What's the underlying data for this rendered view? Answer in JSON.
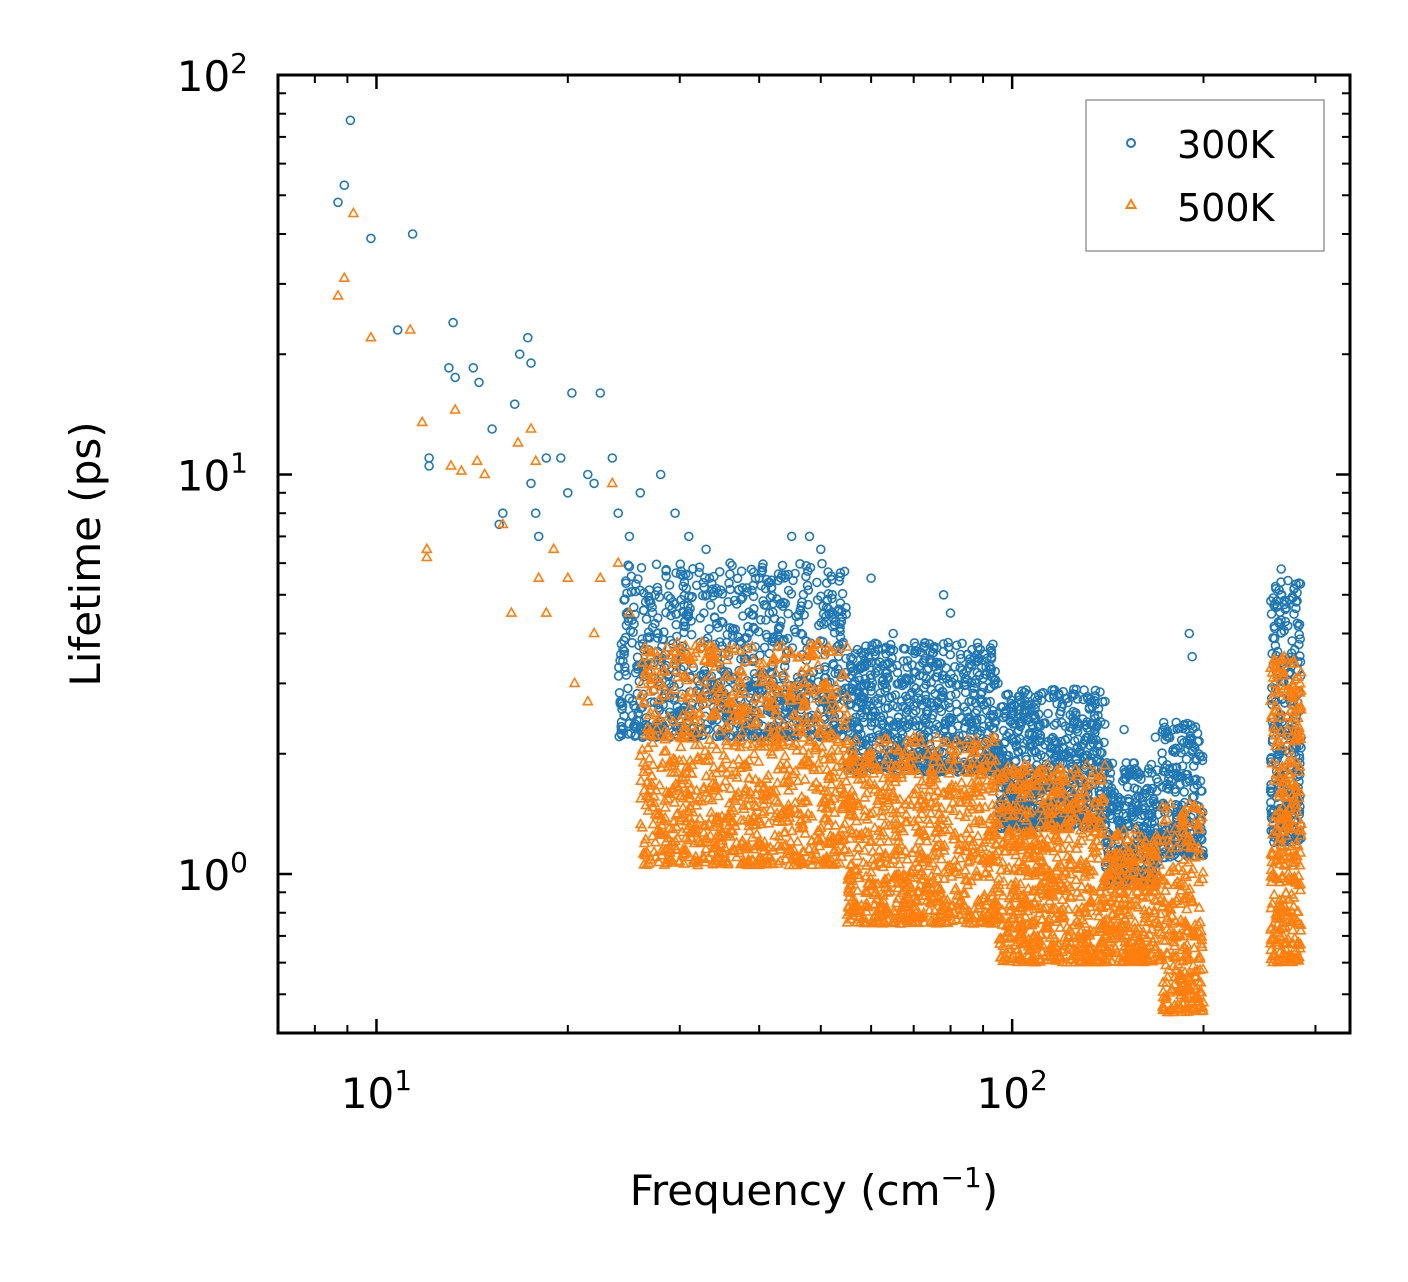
{
  "chart_data": {
    "type": "scatter",
    "title": "",
    "xlabel": "Frequency (cm",
    "xlabel_superscript": "−1",
    "xlabel_suffix": ")",
    "ylabel": "Lifetime (ps)",
    "xscale": "log",
    "yscale": "log",
    "xlim": [
      7,
      340
    ],
    "ylim": [
      0.4,
      100
    ],
    "x_ticks": [
      {
        "value": 10,
        "base": "10",
        "exp": "1"
      },
      {
        "value": 100,
        "base": "10",
        "exp": "2"
      }
    ],
    "y_ticks": [
      {
        "value": 1,
        "base": "10",
        "exp": "0"
      },
      {
        "value": 10,
        "base": "10",
        "exp": "1"
      },
      {
        "value": 100,
        "base": "10",
        "exp": "2"
      }
    ],
    "legend_position": "top-right",
    "series": [
      {
        "name": "300K",
        "marker": "circle",
        "color": "#1f77b4",
        "points": [
          [
            8.7,
            48
          ],
          [
            8.9,
            53
          ],
          [
            9.1,
            77
          ],
          [
            9.8,
            39
          ],
          [
            10.8,
            23
          ],
          [
            11.4,
            40
          ],
          [
            12.1,
            11
          ],
          [
            12.1,
            10.5
          ],
          [
            13.0,
            18.5
          ],
          [
            13.2,
            24
          ],
          [
            13.3,
            17.5
          ],
          [
            14.2,
            18.5
          ],
          [
            14.5,
            17
          ],
          [
            15.2,
            13
          ],
          [
            15.6,
            7.5
          ],
          [
            15.8,
            8
          ],
          [
            16.5,
            15
          ],
          [
            16.8,
            20
          ],
          [
            17.3,
            22
          ],
          [
            17.5,
            19
          ],
          [
            17.5,
            9.5
          ],
          [
            17.8,
            8
          ],
          [
            18.0,
            7
          ],
          [
            18.5,
            11
          ],
          [
            19.5,
            11
          ],
          [
            20.0,
            9
          ],
          [
            20.3,
            16
          ],
          [
            21.5,
            10
          ],
          [
            22.0,
            9.5
          ],
          [
            22.5,
            16
          ],
          [
            23.5,
            11
          ],
          [
            24.0,
            8
          ],
          [
            25.0,
            7
          ],
          [
            26.0,
            9
          ],
          [
            28.0,
            10
          ],
          [
            29.5,
            8
          ],
          [
            31.0,
            7
          ],
          [
            33.0,
            6.5
          ],
          [
            36.0,
            6
          ],
          [
            40.0,
            5.5
          ],
          [
            45.0,
            7
          ],
          [
            48.0,
            7
          ],
          [
            50.0,
            6.5
          ],
          [
            60.0,
            5.5
          ],
          [
            65.0,
            4
          ],
          [
            78.0,
            5
          ],
          [
            80.0,
            4.5
          ],
          [
            95.0,
            3
          ],
          [
            110.0,
            2.8
          ],
          [
            125.0,
            2.9
          ],
          [
            150.0,
            2.3
          ],
          [
            168.0,
            2.2
          ],
          [
            190.0,
            4
          ],
          [
            192.0,
            3.5
          ],
          [
            265.0,
            5.8
          ],
          [
            270.0,
            4.8
          ]
        ],
        "bands": [
          {
            "xmin": 24,
            "xmax": 55,
            "ylow": 2.2,
            "yhigh": 6.0,
            "n": 900
          },
          {
            "xmin": 55,
            "xmax": 95,
            "ylow": 1.8,
            "yhigh": 3.8,
            "n": 700
          },
          {
            "xmin": 95,
            "xmax": 140,
            "ylow": 1.3,
            "yhigh": 2.9,
            "n": 650
          },
          {
            "xmin": 140,
            "xmax": 170,
            "ylow": 0.95,
            "yhigh": 1.9,
            "n": 300
          },
          {
            "xmin": 172,
            "xmax": 200,
            "ylow": 1.1,
            "yhigh": 2.4,
            "n": 220
          },
          {
            "xmin": 255,
            "xmax": 285,
            "ylow": 1.2,
            "yhigh": 5.5,
            "n": 260
          }
        ]
      },
      {
        "name": "500K",
        "marker": "triangle",
        "color": "#ff7f0e",
        "points": [
          [
            8.7,
            28
          ],
          [
            8.9,
            31
          ],
          [
            9.2,
            45
          ],
          [
            9.8,
            22
          ],
          [
            11.3,
            23
          ],
          [
            11.8,
            13.5
          ],
          [
            12.0,
            6.5
          ],
          [
            12.0,
            6.2
          ],
          [
            13.1,
            10.5
          ],
          [
            13.3,
            14.5
          ],
          [
            13.6,
            10.2
          ],
          [
            14.4,
            10.8
          ],
          [
            14.8,
            10
          ],
          [
            15.8,
            7.5
          ],
          [
            16.3,
            4.5
          ],
          [
            16.7,
            12
          ],
          [
            17.5,
            13
          ],
          [
            17.8,
            10.8
          ],
          [
            18.0,
            5.5
          ],
          [
            18.5,
            4.5
          ],
          [
            19.0,
            6.5
          ],
          [
            20.0,
            5.5
          ],
          [
            20.5,
            3
          ],
          [
            21.5,
            2.7
          ],
          [
            22.0,
            4
          ],
          [
            22.5,
            5.5
          ],
          [
            23.5,
            9.5
          ],
          [
            24.0,
            6
          ],
          [
            25.0,
            4.5
          ],
          [
            27.0,
            3.5
          ],
          [
            30.0,
            3.5
          ],
          [
            34.0,
            3.5
          ],
          [
            40.0,
            3.2
          ],
          [
            47.0,
            3.0
          ],
          [
            55.0,
            2.5
          ],
          [
            70.0,
            2.2
          ],
          [
            85.0,
            1.9
          ],
          [
            110.0,
            1.8
          ],
          [
            130.0,
            1.6
          ],
          [
            190.0,
            1.5
          ],
          [
            268.0,
            3.5
          ]
        ],
        "bands": [
          {
            "xmin": 26,
            "xmax": 55,
            "ylow": 1.05,
            "yhigh": 3.8,
            "n": 1000
          },
          {
            "xmin": 55,
            "xmax": 95,
            "ylow": 0.75,
            "yhigh": 2.2,
            "n": 800
          },
          {
            "xmin": 95,
            "xmax": 140,
            "ylow": 0.6,
            "yhigh": 1.9,
            "n": 700
          },
          {
            "xmin": 140,
            "xmax": 172,
            "ylow": 0.6,
            "yhigh": 1.3,
            "n": 300
          },
          {
            "xmin": 172,
            "xmax": 200,
            "ylow": 0.45,
            "yhigh": 1.5,
            "n": 260
          },
          {
            "xmin": 255,
            "xmax": 285,
            "ylow": 0.6,
            "yhigh": 3.5,
            "n": 320
          }
        ]
      }
    ]
  }
}
